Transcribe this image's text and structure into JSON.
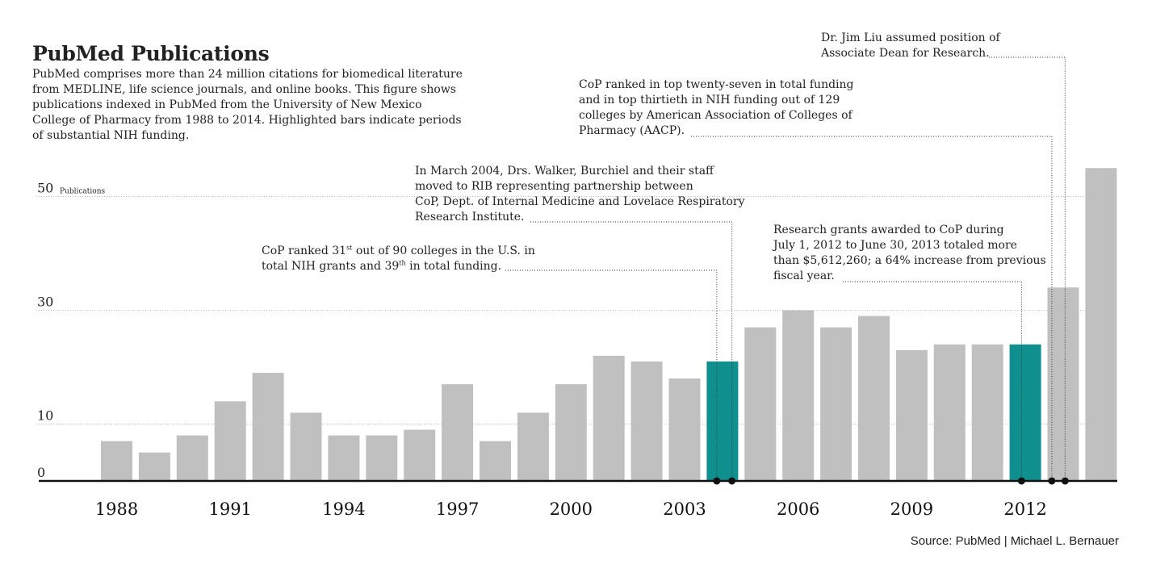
{
  "title": "PubMed Publications",
  "description": [
    "PubMed comprises more than 24 million citations for biomedical literature",
    "from MEDLINE, life science journals, and online books. This figure shows",
    "publications indexed in PubMed from the University of New Mexico",
    "College of Pharmacy from 1988 to 2014. Highlighted bars indicate periods",
    "of substantial NIH funding."
  ],
  "source": "Source: PubMed | Michael L. Bernauer",
  "colors": {
    "bar": "#c0c0c0",
    "highlight": "#108f8f",
    "axis": "#111111",
    "grid": "#bbbbbb"
  },
  "annotations": {
    "cop31": {
      "line1": {
        "a": "CoP ranked 31",
        "sup": "st",
        "b": " out of 90 colleges in the U.S. in"
      },
      "line2": {
        "a": "total NIH grants and 39",
        "sup": "th",
        "b": " in total funding."
      }
    },
    "rib": [
      "In March 2004, Drs. Walker, Burchiel and  their staff",
      "moved to RIB representing partnership between",
      "CoP, Dept. of Internal Medicine and Lovelace Respiratory",
      "Research Institute."
    ],
    "aacp": [
      "CoP ranked in top twenty-seven in total funding",
      "and in top thirtieth in NIH funding  out of 129",
      "colleges by American Association of Colleges of",
      "Pharmacy (AACP)."
    ],
    "grants": [
      "Research grants awarded to CoP during",
      "July 1, 2012 to June 30, 2013 totaled more",
      "than $5,612,260; a 64% increase from previous",
      "fiscal year."
    ],
    "liu": [
      "Dr. Jim Liu assumed position of",
      "Associate Dean for Research."
    ]
  },
  "chart_data": {
    "type": "bar",
    "title": "PubMed Publications",
    "ylabel": "Publications",
    "ylim": [
      0,
      55
    ],
    "yticks": [
      0,
      10,
      30,
      50
    ],
    "x_tick_labels": [
      "1988",
      "1991",
      "1994",
      "1997",
      "2000",
      "2003",
      "2006",
      "2009",
      "2012"
    ],
    "categories": [
      1988,
      1989,
      1990,
      1991,
      1992,
      1993,
      1994,
      1995,
      1996,
      1997,
      1998,
      1999,
      2000,
      2001,
      2002,
      2003,
      2004,
      2005,
      2006,
      2007,
      2008,
      2009,
      2010,
      2011,
      2012,
      2013,
      2014
    ],
    "values": [
      7,
      5,
      8,
      14,
      19,
      12,
      8,
      8,
      9,
      17,
      7,
      12,
      17,
      22,
      21,
      18,
      21,
      27,
      30,
      27,
      29,
      23,
      24,
      24,
      24,
      34,
      55
    ],
    "highlighted": [
      2004,
      2012
    ],
    "grid": true,
    "markers": [
      2003.85,
      2004.25,
      2011.9,
      2012.7,
      2013.05
    ]
  }
}
